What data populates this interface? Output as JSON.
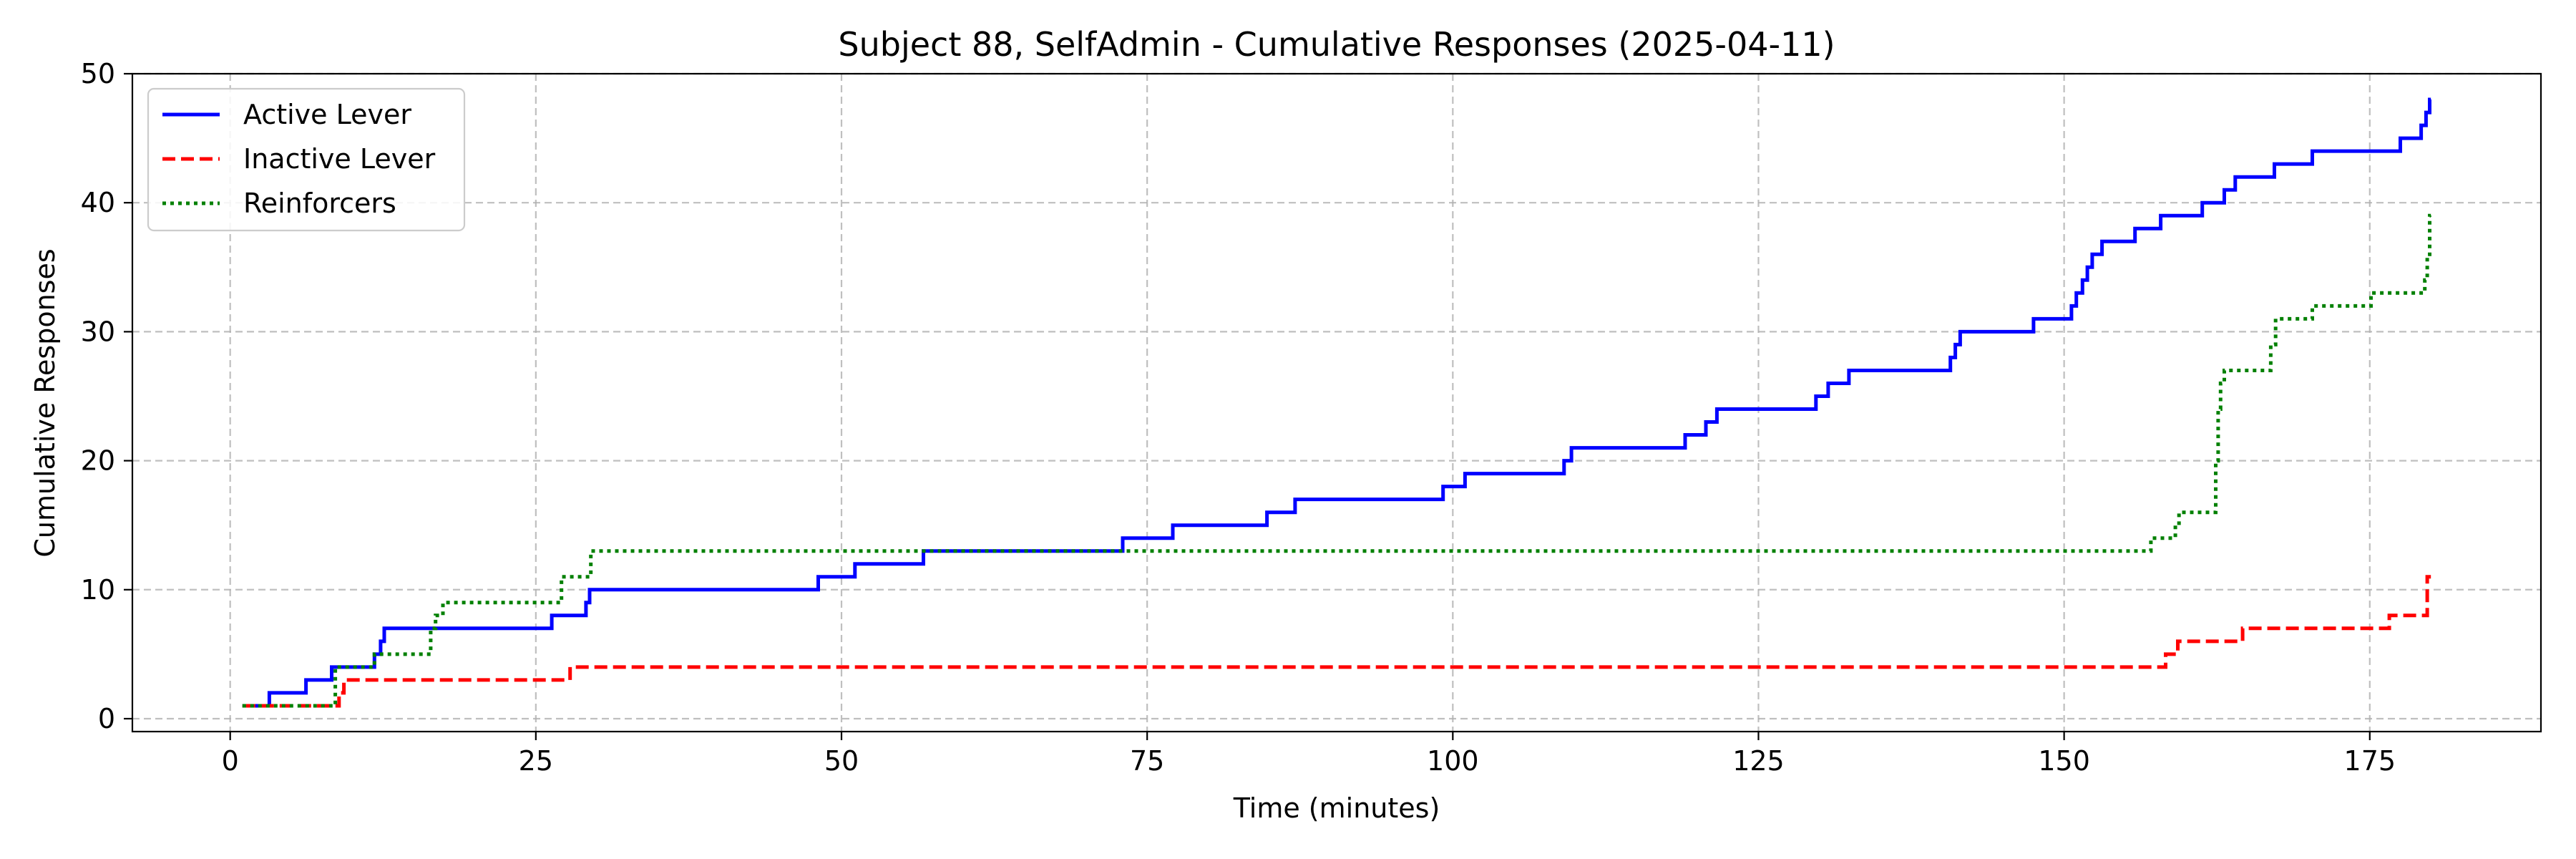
{
  "chart_data": {
    "type": "line",
    "step": "post",
    "title": "Subject 88, SelfAdmin - Cumulative Responses (2025-04-11)",
    "xlabel": "Time (minutes)",
    "ylabel": "Cumulative Responses",
    "xlim": [
      -8,
      189
    ],
    "ylim": [
      -1,
      50
    ],
    "xticks": [
      0,
      25,
      50,
      75,
      100,
      125,
      150,
      175
    ],
    "yticks": [
      0,
      10,
      20,
      30,
      40,
      50
    ],
    "grid": true,
    "legend_position": "upper-left",
    "series": [
      {
        "name": "Active Lever",
        "color": "#0000ff",
        "dash": "solid",
        "x": [
          1,
          3.2,
          6.2,
          8.3,
          11.8,
          12.3,
          12.6,
          26.3,
          29.1,
          29.4,
          48.1,
          51.1,
          56.7,
          73,
          77.1,
          84.8,
          87.1,
          99.2,
          101,
          109.1,
          109.7,
          119,
          120.7,
          121.6,
          129.7,
          130.7,
          132.4,
          140.7,
          141.1,
          141.5,
          147.5,
          150.6,
          151,
          151.5,
          151.9,
          152.3,
          153.1,
          155.8,
          157.9,
          161.3,
          163.1,
          164,
          167.2,
          170.3,
          170.5,
          177.5,
          179.2,
          179.6,
          179.9,
          180
        ],
        "y": [
          1,
          2,
          3,
          4,
          5,
          6,
          7,
          8,
          9,
          10,
          11,
          12,
          13,
          14,
          15,
          16,
          17,
          18,
          19,
          20,
          21,
          22,
          23,
          24,
          25,
          26,
          27,
          28,
          29,
          30,
          31,
          32,
          33,
          34,
          35,
          36,
          37,
          38,
          39,
          40,
          41,
          42,
          43,
          44,
          44,
          45,
          46,
          47,
          48,
          48
        ]
      },
      {
        "name": "Inactive Lever",
        "color": "#ff0000",
        "dash": "dashed",
        "x": [
          1,
          8.9,
          9.3,
          27.8,
          158.3,
          159.3,
          164.6,
          176.6,
          179.7,
          180
        ],
        "y": [
          1,
          2,
          3,
          4,
          5,
          6,
          7,
          8,
          11,
          11
        ]
      },
      {
        "name": "Reinforcers",
        "color": "#008000",
        "dash": "dotted",
        "x": [
          1,
          8.6,
          11.8,
          16.4,
          16.8,
          17.4,
          27.1,
          29.5,
          157.1,
          159.1,
          159.4,
          162.4,
          162.6,
          162.8,
          163.1,
          166.9,
          167.3,
          170.3,
          175.1,
          179.5,
          179.7,
          179.9,
          180
        ],
        "y": [
          1,
          4,
          5,
          7,
          8,
          9,
          11,
          13,
          14,
          15,
          16,
          20,
          24,
          26,
          27,
          29,
          31,
          32,
          33,
          34,
          36,
          39,
          39
        ]
      }
    ]
  }
}
